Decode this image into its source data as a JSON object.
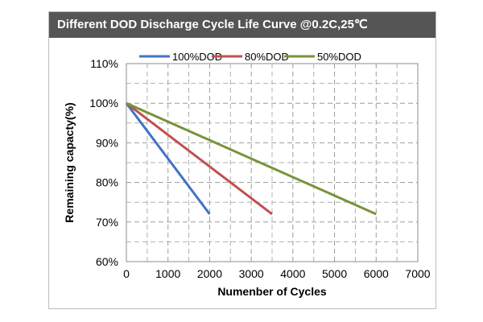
{
  "chart_data": {
    "type": "line",
    "title": "Different DOD Discharge Cycle Life Curve @0.2C,25℃",
    "xlabel": "Numenber of Cycles",
    "ylabel": "Remaining capacty(%)",
    "xlim": [
      0,
      7000
    ],
    "ylim": [
      60,
      110
    ],
    "xticks": [
      0,
      1000,
      2000,
      3000,
      4000,
      5000,
      6000,
      7000
    ],
    "xtick_labels": [
      "0",
      "1000",
      "2000",
      "3000",
      "4000",
      "5000",
      "6000",
      "7000"
    ],
    "yticks": [
      60,
      70,
      80,
      90,
      100,
      110
    ],
    "ytick_labels": [
      "60%",
      "70%",
      "80%",
      "90%",
      "100%",
      "110%"
    ],
    "grid": true,
    "legend_position": "top",
    "series": [
      {
        "name": "100%DOD",
        "color": "#4472c4",
        "x": [
          0,
          2000
        ],
        "y": [
          100,
          72
        ]
      },
      {
        "name": "80%DOD",
        "color": "#c0504d",
        "x": [
          0,
          3500
        ],
        "y": [
          100,
          72
        ]
      },
      {
        "name": "50%DOD",
        "color": "#77933c",
        "x": [
          0,
          6000
        ],
        "y": [
          100,
          72
        ]
      }
    ]
  }
}
